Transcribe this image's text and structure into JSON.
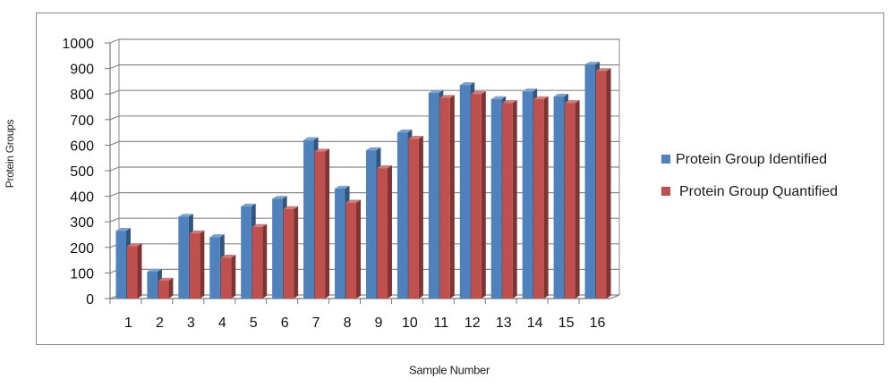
{
  "chart_data": {
    "type": "bar",
    "title": "",
    "xlabel": "Sample Number",
    "ylabel": "Protein Groups",
    "categories": [
      "1",
      "2",
      "3",
      "4",
      "5",
      "6",
      "7",
      "8",
      "9",
      "10",
      "11",
      "12",
      "13",
      "14",
      "15",
      "16"
    ],
    "series": [
      {
        "name": "Protein Group Identified",
        "color": "#4f81bd",
        "values": [
          265,
          105,
          320,
          240,
          360,
          390,
          620,
          430,
          580,
          650,
          805,
          835,
          780,
          810,
          790,
          915
        ]
      },
      {
        "name": "Protein Group Quantified",
        "color": "#c0504d",
        "values": [
          205,
          70,
          255,
          160,
          280,
          350,
          575,
          375,
          510,
          625,
          785,
          800,
          765,
          780,
          765,
          890
        ]
      }
    ],
    "ylim": [
      0,
      1000
    ],
    "yticks": [
      0,
      100,
      200,
      300,
      400,
      500,
      600,
      700,
      800,
      900,
      1000
    ],
    "grid": true,
    "legend": "right",
    "style": "3d-column"
  }
}
